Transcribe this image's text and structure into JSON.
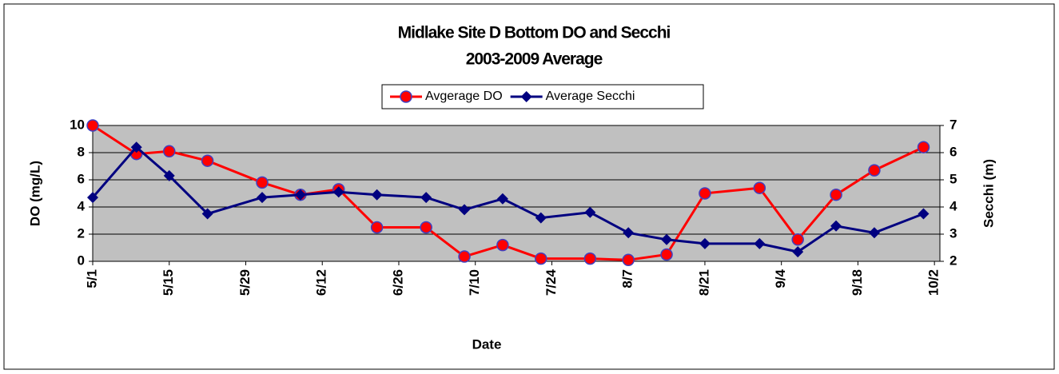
{
  "chart_data": {
    "type": "line",
    "title": "Midlake Site D  Bottom DO and Secchi",
    "subtitle": "2003-2009 Average",
    "x_label": "Date",
    "y_label": "DO (mg/L)",
    "y2_label": "Secchi (m)",
    "x": [
      0,
      8,
      14,
      21,
      31,
      38,
      45,
      52,
      61,
      68,
      75,
      82,
      91,
      98,
      105,
      112,
      122,
      129,
      136,
      143,
      152
    ],
    "xlim": [
      0,
      155
    ],
    "xticks": [
      {
        "value": 0,
        "label": "5/1"
      },
      {
        "value": 14,
        "label": "5/15"
      },
      {
        "value": 28,
        "label": "5/29"
      },
      {
        "value": 42,
        "label": "6/12"
      },
      {
        "value": 56,
        "label": "6/26"
      },
      {
        "value": 70,
        "label": "7/10"
      },
      {
        "value": 84,
        "label": "7/24"
      },
      {
        "value": 98,
        "label": "8/7"
      },
      {
        "value": 112,
        "label": "8/21"
      },
      {
        "value": 126,
        "label": "9/4"
      },
      {
        "value": 140,
        "label": "9/18"
      },
      {
        "value": 154,
        "label": "10/2"
      }
    ],
    "ylim": [
      0,
      10
    ],
    "yticks": [
      0,
      2,
      4,
      6,
      8,
      10
    ],
    "y2lim": [
      2,
      7
    ],
    "y2ticks": [
      2,
      3,
      4,
      5,
      6,
      7
    ],
    "grid": true,
    "legend": "top",
    "series": [
      {
        "name": "Avgerage DO",
        "color": "#ff0000",
        "marker": "circle",
        "values": [
          10,
          7.9,
          8.1,
          7.4,
          5.8,
          4.9,
          5.3,
          2.5,
          2.5,
          0.35,
          1.2,
          0.2,
          0.2,
          0.1,
          0.5,
          5.0,
          5.4,
          1.6,
          4.9,
          6.7,
          8.4
        ]
      },
      {
        "name": "Average Secchi",
        "color": "#000080",
        "marker": "diamond",
        "axis": "y2",
        "values": [
          4.35,
          6.2,
          5.15,
          3.75,
          4.35,
          4.45,
          4.55,
          4.45,
          4.35,
          3.9,
          4.3,
          3.6,
          3.8,
          3.05,
          2.8,
          2.65,
          2.65,
          2.35,
          3.3,
          3.05,
          3.75
        ]
      }
    ]
  }
}
